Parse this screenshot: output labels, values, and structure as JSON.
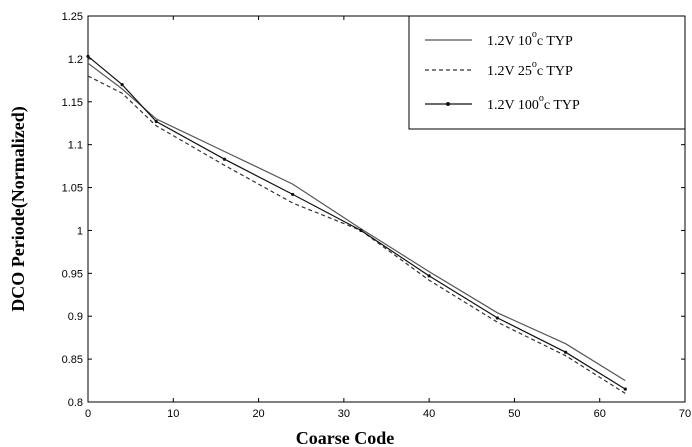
{
  "chart_data": {
    "type": "line",
    "xlabel": "Coarse Code",
    "ylabel": "DCO Periode(Normalized)",
    "xlim": [
      0,
      70
    ],
    "ylim": [
      0.8,
      1.25
    ],
    "x_ticks": [
      "0",
      "10",
      "20",
      "30",
      "40",
      "50",
      "60",
      "70"
    ],
    "y_ticks": [
      "0.8",
      "0.85",
      "0.9",
      "0.95",
      "1",
      "1.05",
      "1.1",
      "1.15",
      "1.2",
      "1.25"
    ],
    "grid": false,
    "legend_position": "top-right",
    "series": [
      {
        "legend": {
          "prefix": "1.2V  10",
          "sup": "o",
          "suffix": "c  TYP"
        },
        "style": "solid",
        "color": "#555555",
        "x": [
          0,
          4,
          8,
          16,
          24,
          32,
          40,
          48,
          56,
          63
        ],
        "y": [
          1.195,
          1.165,
          1.13,
          1.092,
          1.054,
          1.002,
          0.952,
          0.904,
          0.868,
          0.825
        ]
      },
      {
        "legend": {
          "prefix": "1.2V  25",
          "sup": "o",
          "suffix": "c  TYP"
        },
        "style": "dashed",
        "color": "#333333",
        "x": [
          0,
          4,
          8,
          16,
          24,
          32,
          40,
          48,
          56,
          63
        ],
        "y": [
          1.18,
          1.16,
          1.122,
          1.076,
          1.032,
          1.0,
          0.942,
          0.893,
          0.854,
          0.81
        ]
      },
      {
        "legend": {
          "prefix": "1.2V  100",
          "sup": "o",
          "suffix": "c TYP"
        },
        "style": "solid-marker",
        "color": "#111111",
        "x": [
          0,
          4,
          8,
          16,
          24,
          32,
          40,
          48,
          56,
          63
        ],
        "y": [
          1.203,
          1.17,
          1.127,
          1.083,
          1.042,
          1.0,
          0.947,
          0.898,
          0.858,
          0.815
        ]
      }
    ]
  }
}
